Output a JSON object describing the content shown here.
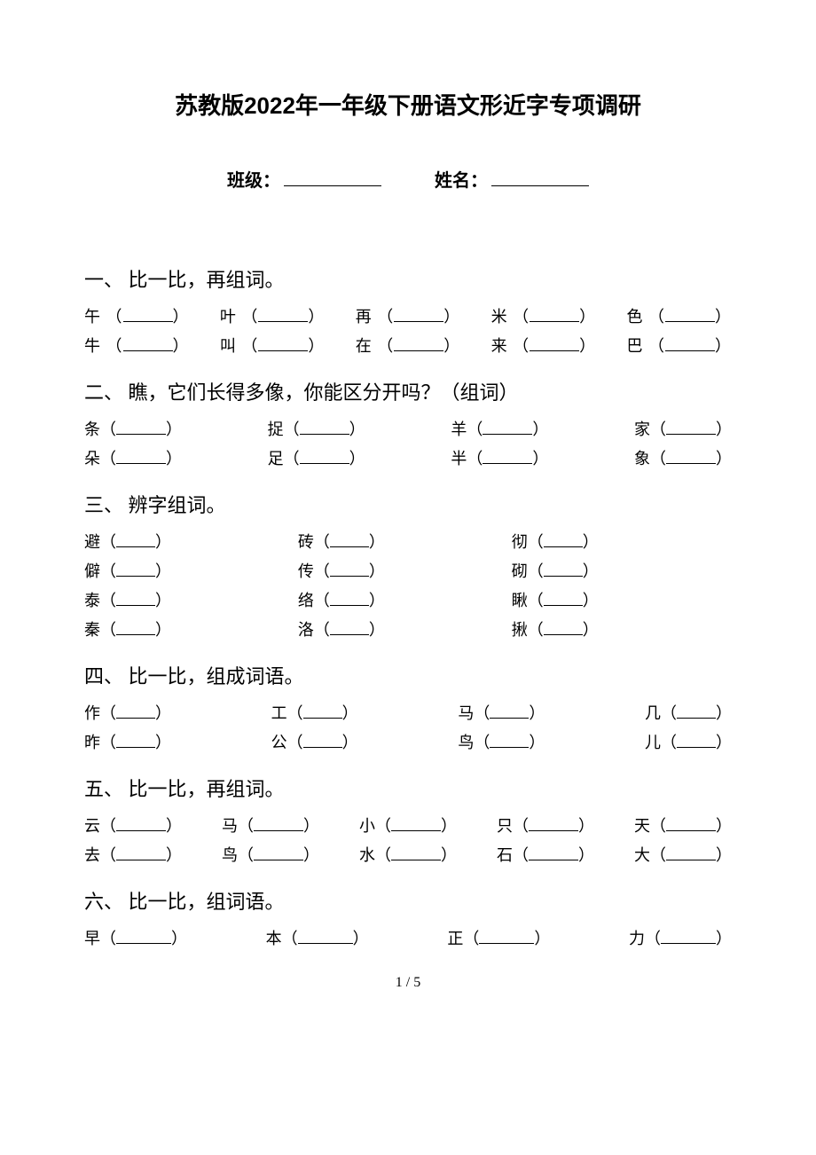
{
  "title": "苏教版2022年一年级下册语文形近字专项调研",
  "info": {
    "class_label": "班级：",
    "name_label": "姓名："
  },
  "sections": {
    "s1": {
      "heading": "一、 比一比，再组词。",
      "rows": [
        [
          "午",
          "叶",
          "再",
          "米",
          "色"
        ],
        [
          "牛",
          "叫",
          "在",
          "来",
          "巴"
        ]
      ]
    },
    "s2": {
      "heading": "二、 瞧，它们长得多像，你能区分开吗？（组词）",
      "rows": [
        [
          "条",
          "捉",
          "羊",
          "家"
        ],
        [
          "朵",
          "足",
          "半",
          "象"
        ]
      ]
    },
    "s3": {
      "heading": "三、 辨字组词。",
      "rows": [
        [
          "避",
          "砖",
          "彻"
        ],
        [
          "僻",
          "传",
          "砌"
        ],
        [
          "泰",
          "络",
          "瞅"
        ],
        [
          "秦",
          "洛",
          "揪"
        ]
      ]
    },
    "s4": {
      "heading": "四、 比一比，组成词语。",
      "rows": [
        [
          "作",
          "工",
          "马",
          "几"
        ],
        [
          "昨",
          "公",
          "鸟",
          "儿"
        ]
      ]
    },
    "s5": {
      "heading": "五、 比一比，再组词。",
      "rows": [
        [
          "云",
          "马",
          "小",
          "只",
          "天"
        ],
        [
          "去",
          "鸟",
          "水",
          "石",
          "大"
        ]
      ]
    },
    "s6": {
      "heading": "六、 比一比，组词语。",
      "rows": [
        [
          "早",
          "本",
          "正",
          "力"
        ]
      ]
    }
  },
  "page_num": "1 / 5",
  "style": {
    "background_color": "#ffffff",
    "text_color": "#000000",
    "title_fontsize": 26,
    "heading_fontsize": 22,
    "body_fontsize": 18
  }
}
